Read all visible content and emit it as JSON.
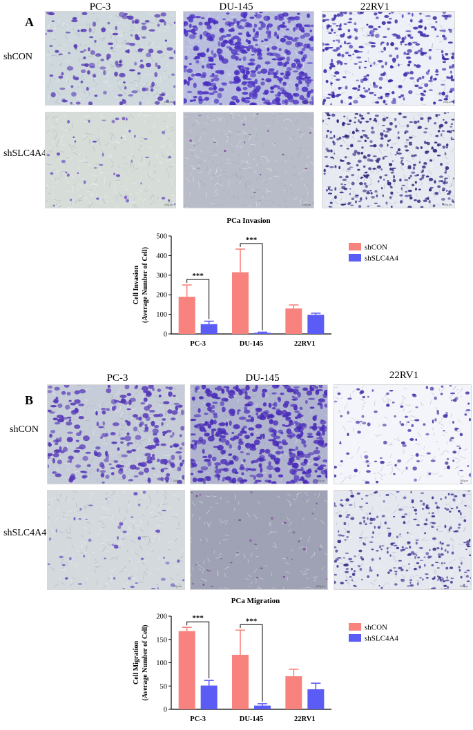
{
  "figure": {
    "panels": [
      {
        "letter": "A",
        "columns": [
          "PC-3",
          "DU-145",
          "22RV1"
        ],
        "rows": [
          "shCON",
          "shSLC4A4"
        ],
        "scale_label": "200μm"
      },
      {
        "letter": "B",
        "columns": [
          "PC-3",
          "DU-145",
          "22RV1"
        ],
        "rows": [
          "shCON",
          "shSLC4A4"
        ],
        "scale_label": "200μm"
      }
    ],
    "colors": {
      "shCON": "#f8837e",
      "shSLC4A4": "#5b5bf5"
    }
  },
  "chart_data": [
    {
      "type": "bar",
      "title": "PCa Invasion",
      "ylabel_line1": "Cell Invasion",
      "ylabel_line2": "(Average Number of Cell)",
      "categories": [
        "PC-3",
        "DU-145",
        "22RV1"
      ],
      "ylim": [
        0,
        500
      ],
      "yticks": [
        0,
        100,
        200,
        300,
        400,
        500
      ],
      "legend_position": "top-right",
      "series": [
        {
          "name": "shCON",
          "values": [
            190,
            315,
            130
          ],
          "errors": [
            60,
            118,
            18
          ]
        },
        {
          "name": "shSLC4A4",
          "values": [
            50,
            6,
            98
          ],
          "errors": [
            15,
            3,
            8
          ]
        }
      ],
      "significance": [
        {
          "category": "PC-3",
          "label": "***"
        },
        {
          "category": "DU-145",
          "label": "***"
        }
      ]
    },
    {
      "type": "bar",
      "title": "PCa Migration",
      "ylabel_line1": "Cell Migration",
      "ylabel_line2": "(Average Number of Cell)",
      "categories": [
        "PC-3",
        "DU-145",
        "22RV1"
      ],
      "ylim": [
        0,
        200
      ],
      "yticks": [
        0,
        50,
        100,
        150,
        200
      ],
      "legend_position": "top-right",
      "series": [
        {
          "name": "shCON",
          "values": [
            168,
            117,
            71
          ],
          "errors": [
            8,
            53,
            15
          ]
        },
        {
          "name": "shSLC4A4",
          "values": [
            51,
            8,
            43
          ],
          "errors": [
            11,
            4,
            13
          ]
        }
      ],
      "significance": [
        {
          "category": "PC-3",
          "label": "***"
        },
        {
          "category": "DU-145",
          "label": "***"
        }
      ]
    }
  ]
}
